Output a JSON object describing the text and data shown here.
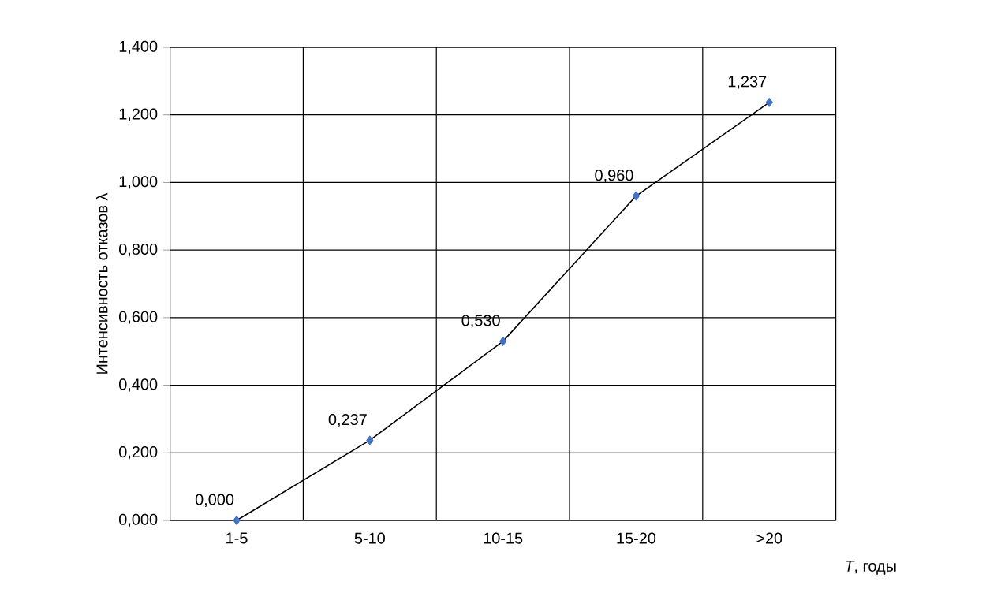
{
  "chart_data": {
    "type": "line",
    "xlabel": "*T*, годы",
    "ylabel": "Интенсивность отказов λ",
    "categories": [
      "1-5",
      "5-10",
      "10-15",
      "15-20",
      ">20"
    ],
    "series": [
      {
        "color": "#4472c4",
        "values": [
          0.0,
          0.237,
          0.53,
          0.96,
          1.237
        ],
        "value_labels": [
          "0,000",
          "0,237",
          "0,530",
          "0,960",
          "1,237"
        ]
      }
    ],
    "ylim": [
      0,
      1.4
    ],
    "yticks": [
      {
        "value": 0,
        "label": "0,000"
      },
      {
        "value": 0.2,
        "label": "0,200"
      },
      {
        "value": 0.4,
        "label": "0,400"
      },
      {
        "value": 0.6,
        "label": "0,600"
      },
      {
        "value": 0.8,
        "label": "0,800"
      },
      {
        "value": 1.0,
        "label": "1,000"
      },
      {
        "value": 1.2,
        "label": "1,200"
      },
      {
        "value": 1.4,
        "label": "1,400"
      }
    ],
    "grid": true,
    "marker": "diamond",
    "line_style": "solid"
  }
}
